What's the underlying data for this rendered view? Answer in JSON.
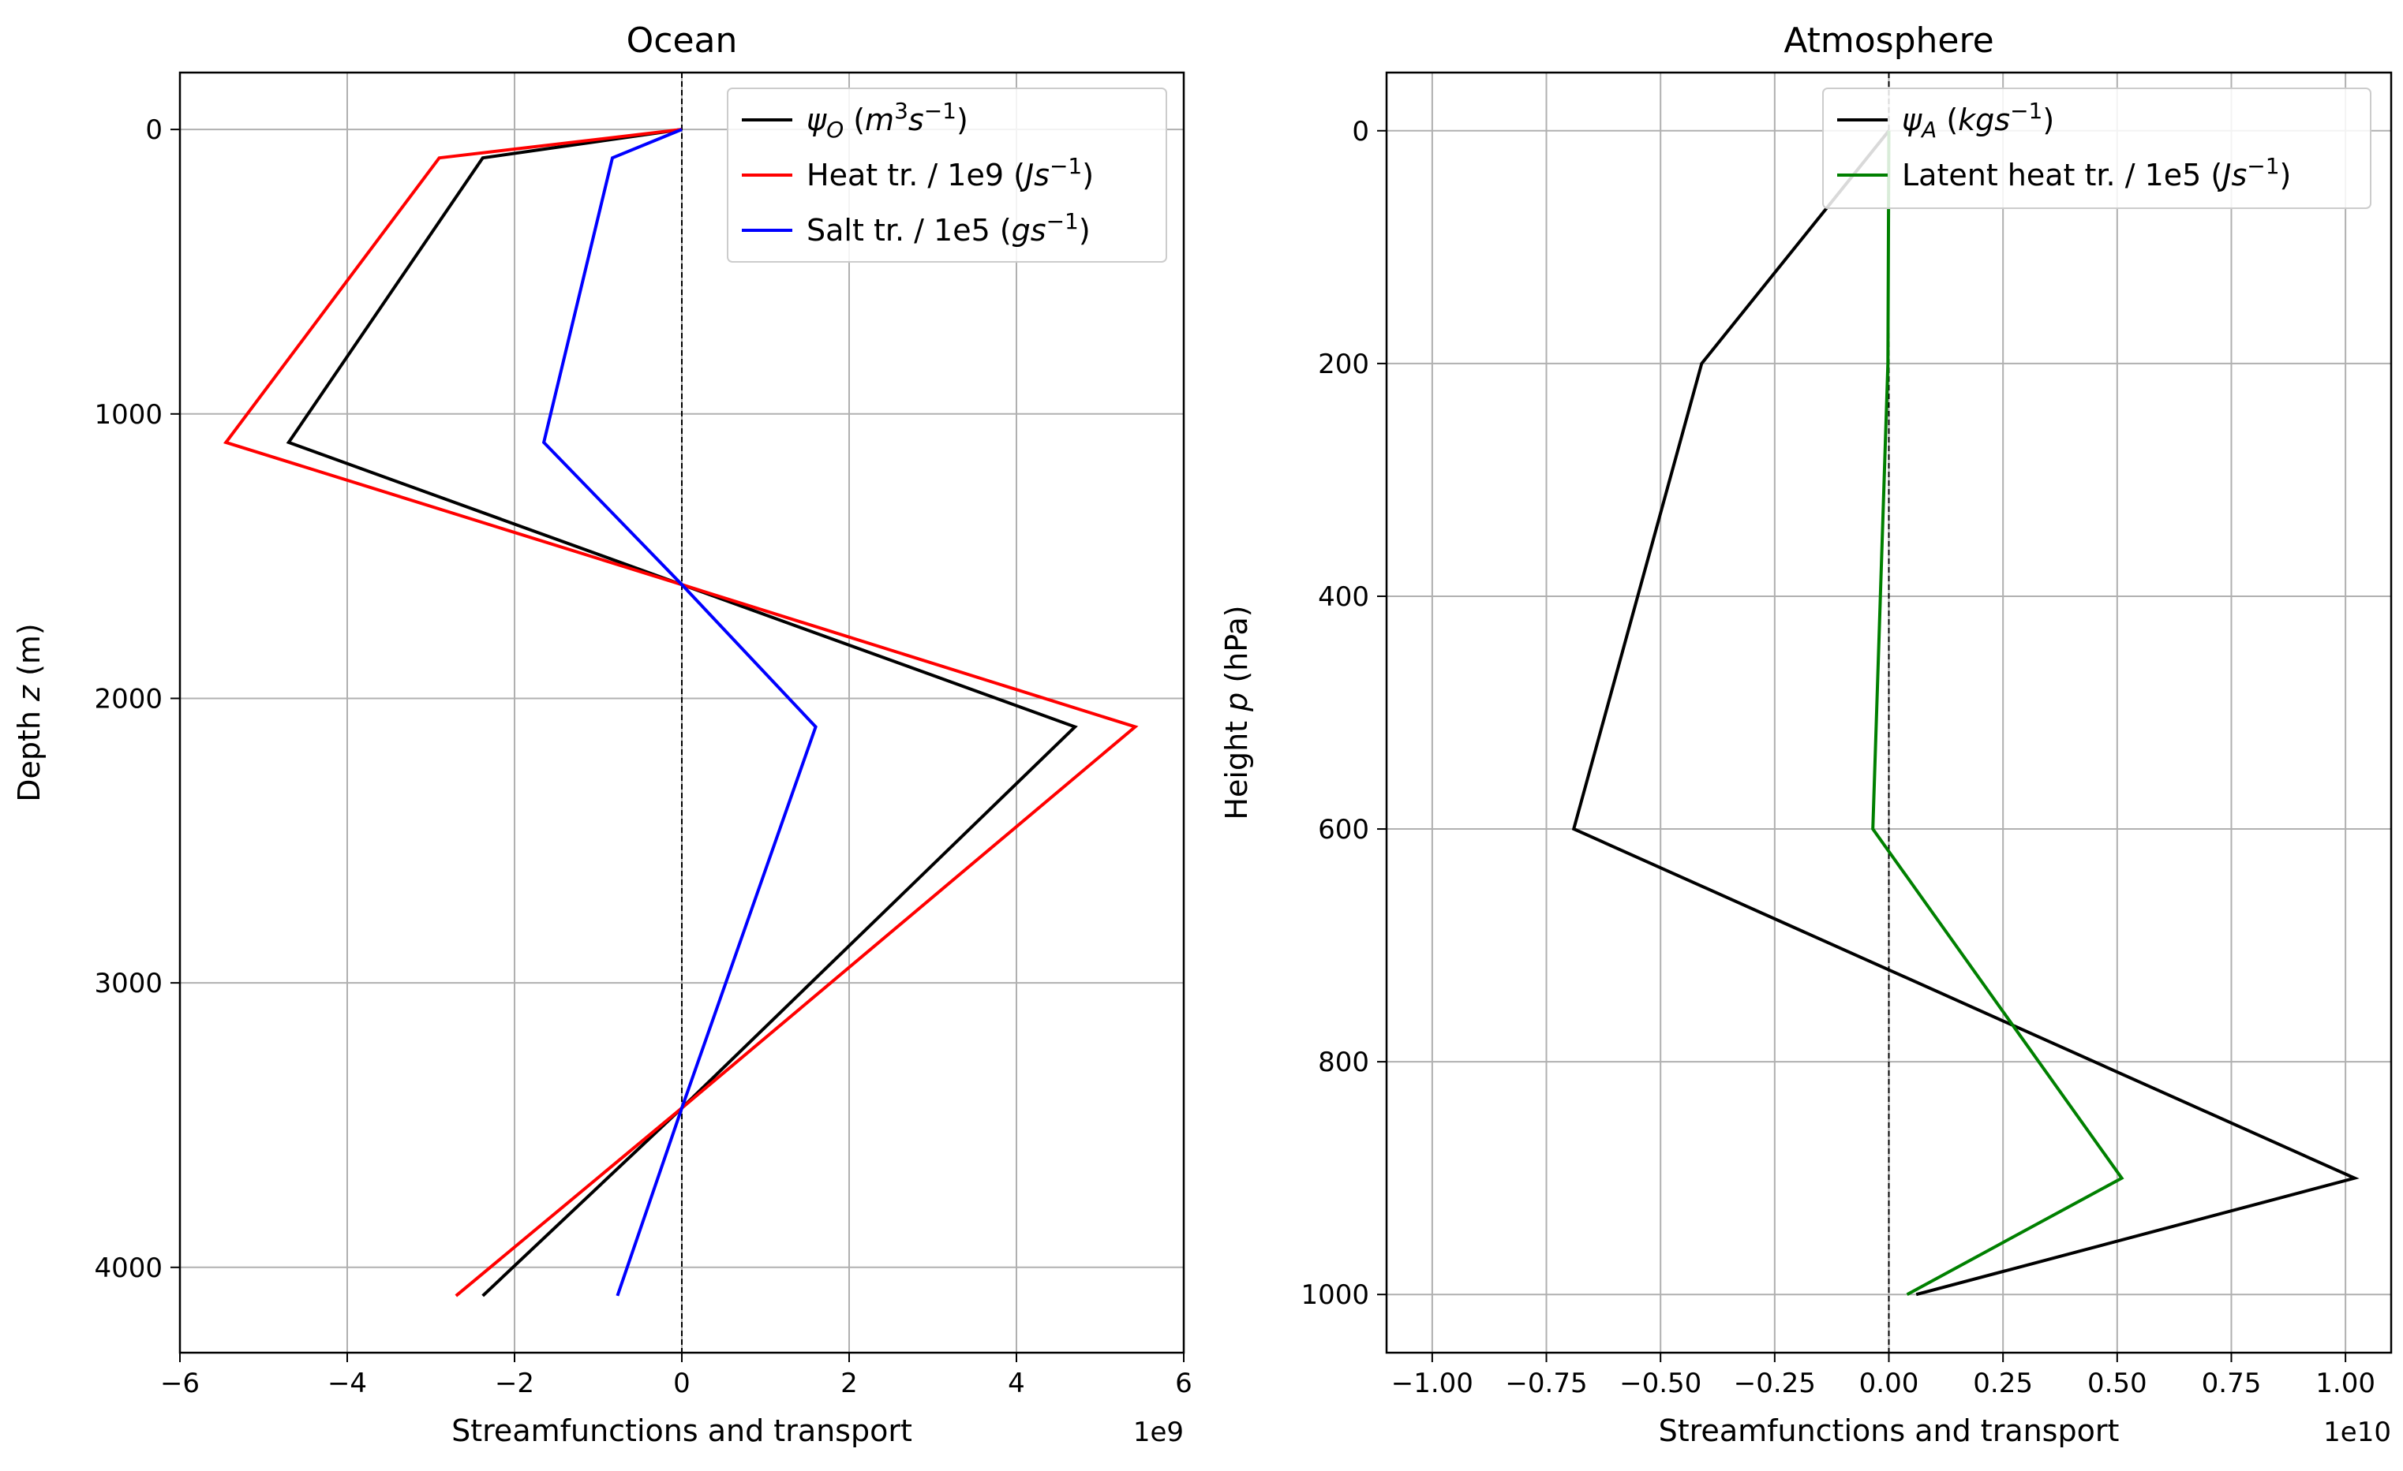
{
  "chart_data": [
    {
      "type": "line",
      "title": "Ocean",
      "xlabel": "Streamfunctions and transport",
      "ylabel": "Depth z (m)",
      "x_scale_label": "1e9",
      "x_scale": 1000000000.0,
      "xlim": [
        -6,
        6
      ],
      "ylim": [
        4300,
        -200
      ],
      "y_inverted": true,
      "grid": true,
      "legend_position": "upper-right",
      "x_ticks": [
        -6,
        -4,
        -2,
        0,
        2,
        4,
        6
      ],
      "x_tick_labels": [
        "−6",
        "−4",
        "−2",
        "0",
        "2",
        "4",
        "6"
      ],
      "y_ticks": [
        0,
        1000,
        2000,
        3000,
        4000
      ],
      "y_tick_labels": [
        "0",
        "1000",
        "2000",
        "3000",
        "4000"
      ],
      "zero_line": true,
      "series": [
        {
          "name": "ψ_O (m³s⁻¹)",
          "legend_parts": [
            "ψ",
            "O",
            " (",
            "m",
            "3",
            "s",
            "−1",
            ")"
          ],
          "color": "#000000",
          "x": [
            0,
            -2.38,
            -4.7,
            0,
            4.7,
            0,
            -2.38
          ],
          "y": [
            0,
            100,
            1100,
            1600,
            2100,
            3440,
            4100
          ]
        },
        {
          "name": "Heat tr. / 1e9 (Js⁻¹)",
          "legend_parts": [
            "Heat tr. / 1e9 (",
            "Js",
            "−1",
            ")"
          ],
          "color": "#ff0000",
          "x": [
            0,
            -2.9,
            -5.45,
            0,
            5.42,
            0,
            -2.7
          ],
          "y": [
            0,
            100,
            1100,
            1600,
            2100,
            3440,
            4100
          ]
        },
        {
          "name": "Salt tr. / 1e5 (gs⁻¹)",
          "legend_parts": [
            "Salt tr. / 1e5 (",
            "gs",
            "−1",
            ")"
          ],
          "color": "#0000ff",
          "x": [
            0,
            -0.83,
            -1.65,
            0,
            1.6,
            0,
            -0.77
          ],
          "y": [
            0,
            100,
            1100,
            1600,
            2100,
            3440,
            4100
          ]
        }
      ]
    },
    {
      "type": "line",
      "title": "Atmosphere",
      "xlabel": "Streamfunctions and transport",
      "ylabel": "Height p (hPa)",
      "x_scale_label": "1e10",
      "x_scale": 10000000000.0,
      "xlim": [
        -1.1,
        1.1
      ],
      "ylim": [
        1050,
        -50
      ],
      "y_inverted": true,
      "grid": true,
      "legend_position": "upper-right",
      "x_ticks": [
        -1.0,
        -0.75,
        -0.5,
        -0.25,
        0,
        0.25,
        0.5,
        0.75,
        1.0
      ],
      "x_tick_labels": [
        "−1.00",
        "−0.75",
        "−0.50",
        "−0.25",
        "0.00",
        "0.25",
        "0.50",
        "0.75",
        "1.00"
      ],
      "y_ticks": [
        0,
        200,
        400,
        600,
        800,
        1000
      ],
      "y_tick_labels": [
        "0",
        "200",
        "400",
        "600",
        "800",
        "1000"
      ],
      "zero_line": true,
      "series": [
        {
          "name": "ψ_A (kgs⁻¹)",
          "legend_parts": [
            "ψ",
            "A",
            " (",
            "kgs",
            "−1",
            ")"
          ],
          "color": "#000000",
          "x": [
            0,
            -0.41,
            -0.69,
            1.02,
            0.06
          ],
          "y": [
            0,
            200,
            600,
            900,
            1000
          ]
        },
        {
          "name": "Latent heat tr. / 1e5 (Js⁻¹)",
          "legend_parts": [
            "Latent heat tr. / 1e5 (",
            "Js",
            "−1",
            ")"
          ],
          "color": "#008000",
          "x": [
            0,
            -0.002,
            -0.035,
            0.51,
            0.04
          ],
          "y": [
            0,
            200,
            600,
            900,
            1000
          ]
        }
      ]
    }
  ]
}
